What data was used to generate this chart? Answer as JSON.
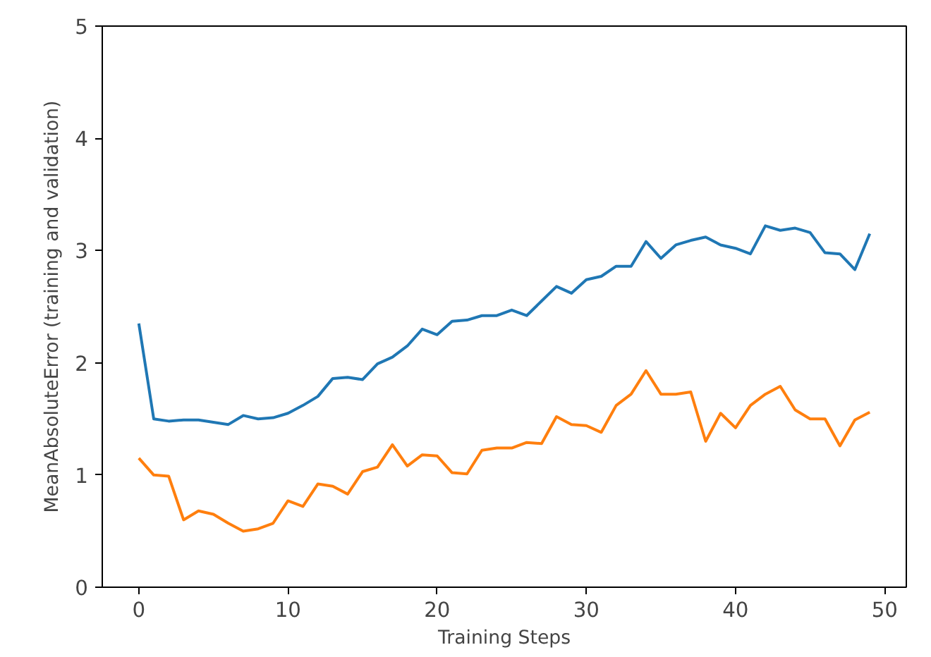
{
  "chart_data": {
    "type": "line",
    "xlabel": "Training Steps",
    "ylabel": "MeanAbsoluteError (training and validation)",
    "x": [
      0,
      1,
      2,
      3,
      4,
      5,
      6,
      7,
      8,
      9,
      10,
      11,
      12,
      13,
      14,
      15,
      16,
      17,
      18,
      19,
      20,
      21,
      22,
      23,
      24,
      25,
      26,
      27,
      28,
      29,
      30,
      31,
      32,
      33,
      34,
      35,
      36,
      37,
      38,
      39,
      40,
      41,
      42,
      43,
      44,
      45,
      46,
      47,
      48,
      49
    ],
    "series": [
      {
        "color": "#1f77b4",
        "values": [
          2.35,
          1.5,
          1.48,
          1.49,
          1.49,
          1.47,
          1.45,
          1.53,
          1.5,
          1.51,
          1.55,
          1.62,
          1.7,
          1.86,
          1.87,
          1.85,
          1.99,
          2.05,
          2.15,
          2.3,
          2.25,
          2.37,
          2.38,
          2.42,
          2.42,
          2.47,
          2.42,
          2.55,
          2.68,
          2.62,
          2.74,
          2.77,
          2.86,
          2.86,
          3.08,
          2.93,
          3.05,
          3.09,
          3.12,
          3.05,
          3.02,
          2.97,
          3.22,
          3.18,
          3.2,
          3.16,
          2.98,
          2.97,
          2.83,
          3.15
        ]
      },
      {
        "color": "#ff7f0e",
        "values": [
          1.15,
          1.0,
          0.99,
          0.6,
          0.68,
          0.65,
          0.57,
          0.5,
          0.52,
          0.57,
          0.77,
          0.72,
          0.92,
          0.9,
          0.83,
          1.03,
          1.07,
          1.27,
          1.08,
          1.18,
          1.17,
          1.02,
          1.01,
          1.22,
          1.24,
          1.24,
          1.29,
          1.28,
          1.52,
          1.45,
          1.44,
          1.38,
          1.62,
          1.72,
          1.93,
          1.72,
          1.72,
          1.74,
          1.3,
          1.55,
          1.42,
          1.62,
          1.72,
          1.79,
          1.58,
          1.5,
          1.5,
          1.26,
          1.49,
          1.56
        ]
      }
    ],
    "xlim": [
      -2.45,
      51.45
    ],
    "ylim": [
      0,
      5
    ],
    "xticks": [
      0,
      10,
      20,
      30,
      40,
      50
    ],
    "yticks": [
      0,
      1,
      2,
      3,
      4,
      5
    ],
    "grid": false
  }
}
